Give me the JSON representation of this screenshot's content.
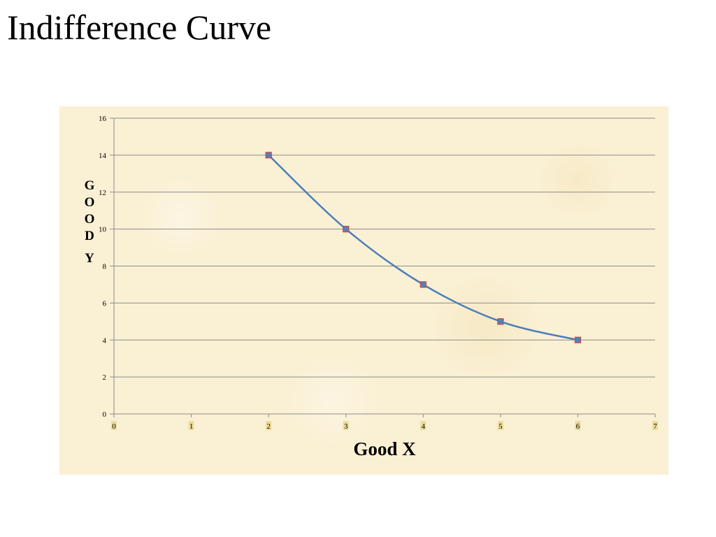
{
  "slide": {
    "title": "Indifference Curve"
  },
  "chart_data": {
    "type": "line",
    "x": [
      2,
      3,
      4,
      5,
      6
    ],
    "series": [
      {
        "values": [
          14,
          10,
          7,
          5,
          4
        ]
      }
    ],
    "xlabel": "Good X",
    "ylabel": "GOOD Y",
    "xlim": [
      0,
      7
    ],
    "ylim": [
      0,
      16
    ],
    "xticks": [
      0,
      1,
      2,
      3,
      4,
      5,
      6,
      7
    ],
    "yticks": [
      0,
      2,
      4,
      6,
      8,
      10,
      12,
      14,
      16
    ],
    "grid": true,
    "smooth": true,
    "colors": {
      "line": "#4a7ebb",
      "marker_fill": "#4f81bd",
      "marker_edge": "#c0504d",
      "grid": "#8c8c8c",
      "panel": "#faf0d4"
    }
  }
}
